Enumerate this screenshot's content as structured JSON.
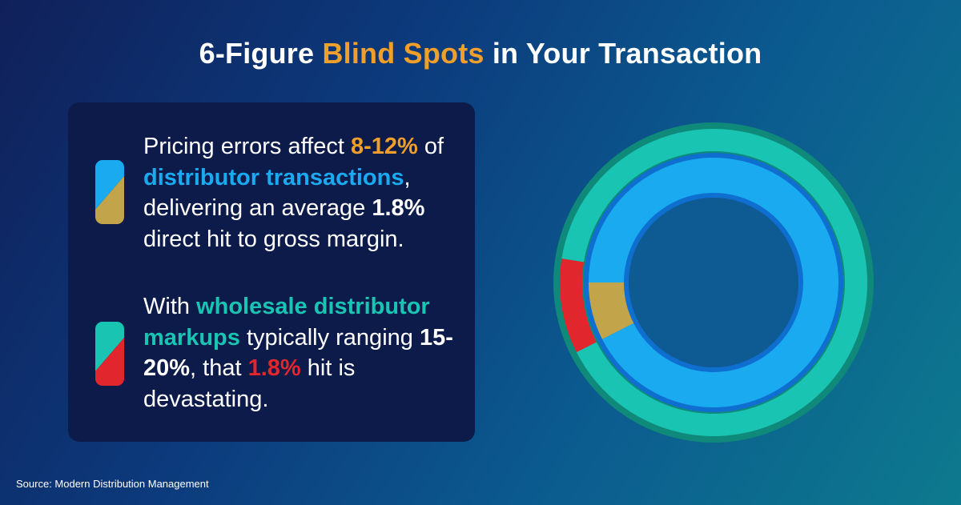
{
  "title": {
    "part1": "6-Figure ",
    "highlight": "Blind Spots",
    "part2": " in Your Transaction"
  },
  "point1": {
    "t1": "Pricing errors affect ",
    "h1": "8-12%",
    "t2": " of ",
    "h2": "distributor transactions",
    "t3": ", delivering an average ",
    "h3": "1.8%",
    "t4": " direct hit to gross margin."
  },
  "point2": {
    "t1": "With ",
    "h1": "wholesale distributor markups",
    "t2": " typically ranging ",
    "h2": "15-20%",
    "t3": ", that ",
    "h3": "1.8%",
    "t4": " hit is devastating."
  },
  "source": "Source: Modern Distribution Management",
  "colors": {
    "orange": "#f0a02a",
    "blue": "#1aaaf0",
    "teal": "#19c4b2",
    "red": "#e2262e",
    "gold": "#c2a54a",
    "card": "#0c1b4a"
  },
  "chart_data": {
    "type": "pie",
    "subtype": "nested-donut",
    "series": [
      {
        "ring": "outer",
        "slices": [
          {
            "value": 10,
            "color": "#e2262e"
          },
          {
            "value": 90,
            "color": "#19c4b2"
          }
        ]
      },
      {
        "ring": "inner",
        "slices": [
          {
            "value": 7.5,
            "color": "#c2a54a"
          },
          {
            "value": 92.5,
            "color": "#1aaaf0"
          }
        ]
      }
    ]
  }
}
